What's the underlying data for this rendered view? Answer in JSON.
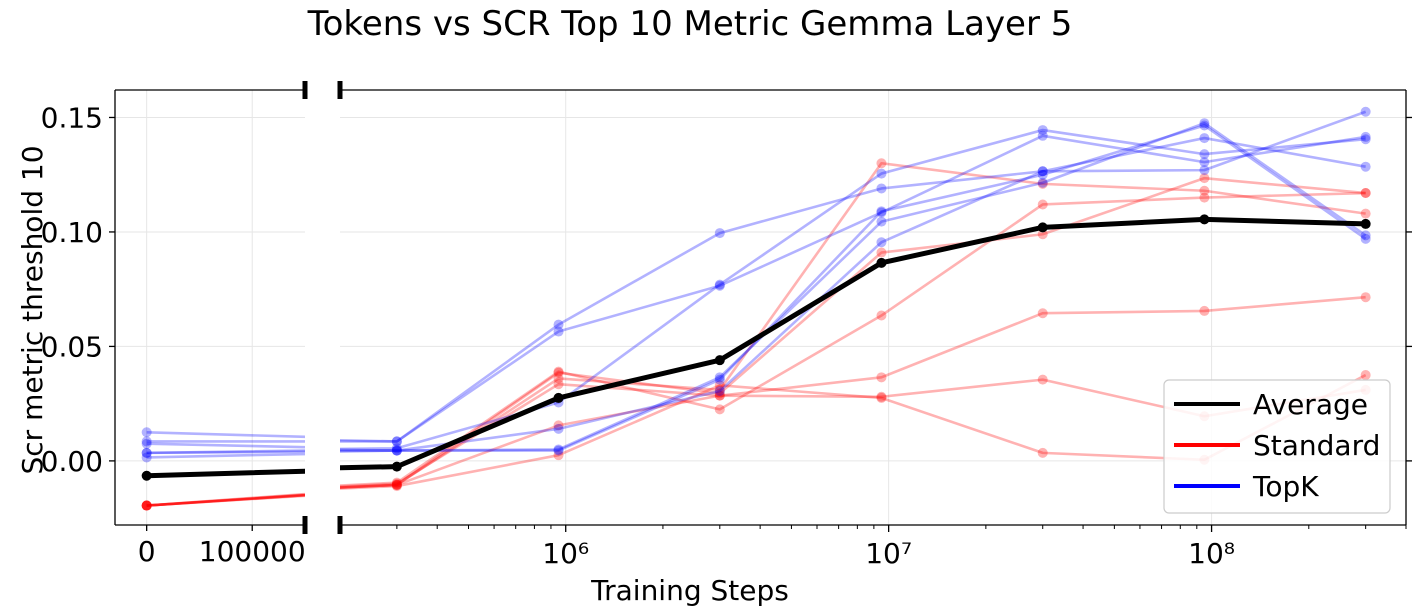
{
  "chart_data": {
    "type": "line",
    "title": "Tokens vs SCR Top 10 Metric Gemma Layer 5",
    "xlabel": "Training Steps",
    "ylabel": "Scr metric threshold 10",
    "x_scale": "broken: linear segment [0, 100000] then log segment",
    "xlim_linear": [
      -30000,
      150000
    ],
    "xlim_log": [
      200000,
      400000000
    ],
    "ylim": [
      -0.028,
      0.162
    ],
    "y_ticks": [
      0.0,
      0.05,
      0.1,
      0.15
    ],
    "y_tick_labels": [
      "0.00",
      "0.05",
      "0.10",
      "0.15"
    ],
    "x_linear_ticks": [
      0,
      100000
    ],
    "x_linear_tick_labels": [
      "0",
      "100000"
    ],
    "x_log_ticks": [
      1000000,
      10000000,
      100000000
    ],
    "x_log_tick_labels": [
      "10⁶",
      "10⁷",
      "10⁸"
    ],
    "grid": true,
    "legend_position": "lower right",
    "legend": [
      {
        "label": "Average",
        "color": "#000000"
      },
      {
        "label": "Standard",
        "color": "#ff0000"
      },
      {
        "label": "TopK",
        "color": "#0000ff"
      }
    ],
    "x": [
      0,
      300000,
      950000,
      3000000,
      9500000,
      30000000,
      95000000,
      300000000
    ],
    "series": [
      {
        "group": "Average",
        "color": "#000000",
        "values": [
          -0.0065,
          -0.0025,
          0.0275,
          0.044,
          0.0865,
          0.102,
          0.1055,
          0.1035
        ]
      },
      {
        "group": "Standard",
        "color": "#ff0000",
        "values": [
          -0.0195,
          -0.0105,
          0.036,
          0.031,
          0.13,
          0.121,
          0.118,
          0.108
        ]
      },
      {
        "group": "Standard",
        "color": "#ff0000",
        "values": [
          -0.0195,
          -0.0105,
          0.0385,
          0.0295,
          0.091,
          0.099,
          0.1235,
          0.117
        ]
      },
      {
        "group": "Standard",
        "color": "#ff0000",
        "values": [
          -0.0195,
          -0.0095,
          0.039,
          0.0225,
          0.0635,
          0.112,
          0.115,
          0.117
        ]
      },
      {
        "group": "Standard",
        "color": "#ff0000",
        "values": [
          -0.0195,
          -0.011,
          0.0025,
          0.033,
          0.0275,
          0.0035,
          0.0005,
          0.0375
        ]
      },
      {
        "group": "Standard",
        "color": "#ff0000",
        "values": [
          -0.0195,
          -0.0105,
          0.0155,
          0.0285,
          0.028,
          0.0355,
          0.0195,
          0.031
        ]
      },
      {
        "group": "Standard",
        "color": "#ff0000",
        "values": [
          -0.0195,
          -0.01,
          0.0335,
          0.0285,
          0.0365,
          0.0645,
          0.0655,
          0.0715
        ]
      },
      {
        "group": "TopK",
        "color": "#0000ff",
        "values": [
          0.0125,
          0.0085,
          0.0595,
          0.0995,
          0.119,
          0.1265,
          0.127,
          0.1525
        ]
      },
      {
        "group": "TopK",
        "color": "#0000ff",
        "values": [
          0.0085,
          0.0085,
          0.0565,
          0.0765,
          0.1085,
          0.142,
          0.1305,
          0.1415
        ]
      },
      {
        "group": "TopK",
        "color": "#0000ff",
        "values": [
          0.0075,
          0.0045,
          0.005,
          0.0365,
          0.1045,
          0.1215,
          0.1475,
          0.0985
        ]
      },
      {
        "group": "TopK",
        "color": "#0000ff",
        "values": [
          0.0035,
          0.0055,
          0.0255,
          0.077,
          0.1255,
          0.1445,
          0.134,
          0.1405
        ]
      },
      {
        "group": "TopK",
        "color": "#0000ff",
        "values": [
          0.0015,
          0.0045,
          0.014,
          0.0305,
          0.0955,
          0.1265,
          0.141,
          0.1285
        ]
      },
      {
        "group": "TopK",
        "color": "#0000ff",
        "values": [
          0.0035,
          0.0045,
          0.0045,
          0.0355,
          0.109,
          0.125,
          0.1465,
          0.097
        ]
      }
    ]
  }
}
